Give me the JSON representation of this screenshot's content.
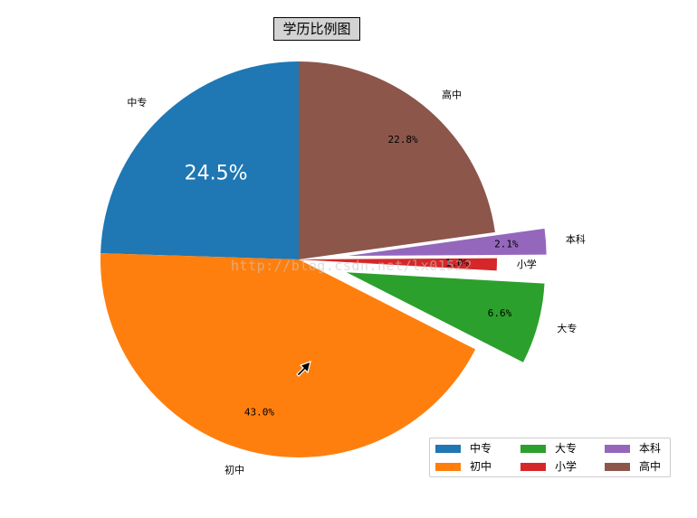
{
  "chart_data": {
    "type": "pie",
    "title": "学历比例图",
    "start_angle": 90,
    "counterclockwise": true,
    "slices": [
      {
        "label": "中专",
        "pct_label": "24.5%",
        "value": 24.5,
        "color": "#1f77b4",
        "explode": 0
      },
      {
        "label": "初中",
        "pct_label": "43.0%",
        "value": 43.0,
        "color": "#ff7f0e",
        "explode": 0
      },
      {
        "label": "大专",
        "pct_label": "6.6%",
        "value": 6.6,
        "color": "#2ca02c",
        "explode": 0.25
      },
      {
        "label": "小学",
        "pct_label": "1.0%",
        "value": 1.0,
        "color": "#d62728",
        "explode": 0
      },
      {
        "label": "本科",
        "pct_label": "2.1%",
        "value": 2.1,
        "color": "#9467bd",
        "explode": 0.25
      },
      {
        "label": "高中",
        "pct_label": "22.8%",
        "value": 22.8,
        "color": "#8c564b",
        "explode": 0
      }
    ],
    "legend": {
      "placement": "lower-right",
      "columns": 3,
      "entries": [
        "中专",
        "初中",
        "大专",
        "小学",
        "本科",
        "高中"
      ]
    }
  },
  "watermark": "http://blog.csdn.net/lx01522"
}
